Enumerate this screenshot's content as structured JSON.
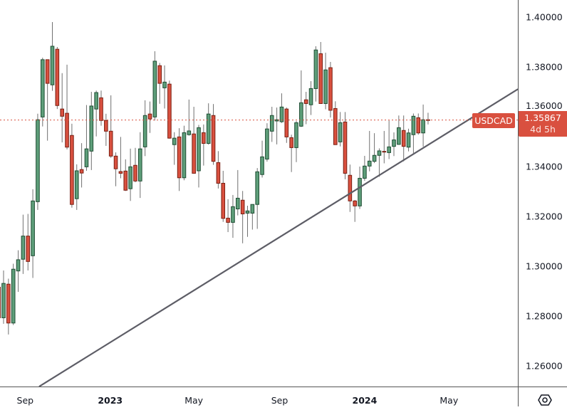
{
  "chart_data": {
    "type": "candlestick",
    "symbol": "USDCAD",
    "interval": "1W",
    "first_candle": "2022-07-25",
    "last_price": "1.35867",
    "time_to_close": "4d 5h",
    "ylim": [
      1.25143,
      1.40686
    ],
    "y_ticks": [
      "1.26000",
      "1.28000",
      "1.30000",
      "1.32000",
      "1.34000",
      "1.36000",
      "1.38000",
      "1.40000"
    ],
    "x_ticks": [
      {
        "label": "Sep",
        "date": "2022-09-01",
        "bold": false
      },
      {
        "label": "2023",
        "date": "2023-01-01",
        "bold": true
      },
      {
        "label": "May",
        "date": "2023-05-01",
        "bold": false
      },
      {
        "label": "Sep",
        "date": "2023-09-01",
        "bold": false
      },
      {
        "label": "2024",
        "date": "2024-01-01",
        "bold": true
      },
      {
        "label": "May",
        "date": "2024-05-01",
        "bold": false
      }
    ],
    "trendline": [
      {
        "date": "2022-09-21",
        "price": 1.2517
      },
      {
        "date": "2024-08-08",
        "price": 1.3711
      }
    ],
    "candle_fields": [
      "open",
      "high",
      "low",
      "close"
    ],
    "candles": [
      [
        1.2916,
        1.2945,
        1.276,
        1.2793
      ],
      [
        1.2793,
        1.2983,
        1.2769,
        1.2931
      ],
      [
        1.2928,
        1.295,
        1.2726,
        1.2772
      ],
      [
        1.2772,
        1.301,
        1.2764,
        1.2988
      ],
      [
        1.2981,
        1.3064,
        1.2897,
        1.3026
      ],
      [
        1.3028,
        1.3207,
        1.2969,
        1.3121
      ],
      [
        1.3121,
        1.321,
        1.2983,
        1.3019
      ],
      [
        1.3042,
        1.3309,
        1.2953,
        1.3262
      ],
      [
        1.3259,
        1.3612,
        1.3226,
        1.3588
      ],
      [
        1.3599,
        1.3837,
        1.3561,
        1.3829
      ],
      [
        1.3829,
        1.3829,
        1.3504,
        1.3734
      ],
      [
        1.3728,
        1.398,
        1.3704,
        1.3883
      ],
      [
        1.3871,
        1.388,
        1.3631,
        1.3645
      ],
      [
        1.3631,
        1.3775,
        1.3497,
        1.3602
      ],
      [
        1.3614,
        1.3809,
        1.3469,
        1.3478
      ],
      [
        1.3525,
        1.3572,
        1.3235,
        1.3248
      ],
      [
        1.3271,
        1.3409,
        1.3226,
        1.3383
      ],
      [
        1.3388,
        1.3494,
        1.3316,
        1.3374
      ],
      [
        1.3399,
        1.3647,
        1.3383,
        1.3471
      ],
      [
        1.3462,
        1.37,
        1.3386,
        1.3643
      ],
      [
        1.3631,
        1.3705,
        1.3521,
        1.3697
      ],
      [
        1.3676,
        1.3705,
        1.3564,
        1.3585
      ],
      [
        1.3585,
        1.3612,
        1.3483,
        1.3542
      ],
      [
        1.3542,
        1.3686,
        1.3435,
        1.3442
      ],
      [
        1.3442,
        1.3457,
        1.3321,
        1.3391
      ],
      [
        1.338,
        1.3519,
        1.3353,
        1.3373
      ],
      [
        1.3382,
        1.3429,
        1.3302,
        1.3305
      ],
      [
        1.3311,
        1.3472,
        1.3262,
        1.3399
      ],
      [
        1.3405,
        1.3475,
        1.3337,
        1.3342
      ],
      [
        1.3342,
        1.3538,
        1.3274,
        1.3471
      ],
      [
        1.3479,
        1.3666,
        1.3442,
        1.3605
      ],
      [
        1.3611,
        1.3661,
        1.3535,
        1.3591
      ],
      [
        1.3599,
        1.3863,
        1.3585,
        1.3823
      ],
      [
        1.3805,
        1.3816,
        1.3652,
        1.3734
      ],
      [
        1.3716,
        1.3806,
        1.3633,
        1.3739
      ],
      [
        1.3731,
        1.3745,
        1.3512,
        1.3514
      ],
      [
        1.3488,
        1.3538,
        1.3407,
        1.3514
      ],
      [
        1.3519,
        1.3554,
        1.3302,
        1.3355
      ],
      [
        1.3355,
        1.3564,
        1.3345,
        1.3536
      ],
      [
        1.3528,
        1.3669,
        1.3524,
        1.3543
      ],
      [
        1.3531,
        1.364,
        1.3373,
        1.3373
      ],
      [
        1.3383,
        1.3567,
        1.3316,
        1.3556
      ],
      [
        1.3536,
        1.3569,
        1.3404,
        1.3493
      ],
      [
        1.3493,
        1.3654,
        1.3488,
        1.3611
      ],
      [
        1.3605,
        1.3651,
        1.3407,
        1.3421
      ],
      [
        1.3416,
        1.3462,
        1.3312,
        1.3333
      ],
      [
        1.3333,
        1.3383,
        1.3178,
        1.3192
      ],
      [
        1.3193,
        1.3269,
        1.3137,
        1.3176
      ],
      [
        1.3176,
        1.3286,
        1.3114,
        1.3239
      ],
      [
        1.323,
        1.3386,
        1.3204,
        1.3273
      ],
      [
        1.3265,
        1.3302,
        1.3092,
        1.321
      ],
      [
        1.3213,
        1.3243,
        1.3118,
        1.3222
      ],
      [
        1.3213,
        1.3248,
        1.3147,
        1.3248
      ],
      [
        1.3248,
        1.3394,
        1.315,
        1.3379
      ],
      [
        1.3368,
        1.3504,
        1.3356,
        1.3439
      ],
      [
        1.343,
        1.3574,
        1.342,
        1.3551
      ],
      [
        1.3542,
        1.364,
        1.3499,
        1.3605
      ],
      [
        1.3583,
        1.3637,
        1.3489,
        1.3588
      ],
      [
        1.358,
        1.3694,
        1.3575,
        1.3639
      ],
      [
        1.3631,
        1.3637,
        1.3495,
        1.3519
      ],
      [
        1.3516,
        1.3528,
        1.3378,
        1.3476
      ],
      [
        1.3476,
        1.3583,
        1.3418,
        1.3576
      ],
      [
        1.3562,
        1.3786,
        1.3559,
        1.3656
      ],
      [
        1.3668,
        1.37,
        1.357,
        1.3653
      ],
      [
        1.3648,
        1.3743,
        1.3607,
        1.3713
      ],
      [
        1.3713,
        1.3883,
        1.3661,
        1.3868
      ],
      [
        1.3853,
        1.39,
        1.3653,
        1.3653
      ],
      [
        1.3653,
        1.3857,
        1.363,
        1.3788
      ],
      [
        1.3797,
        1.382,
        1.3597,
        1.3626
      ],
      [
        1.3633,
        1.3662,
        1.3488,
        1.3488
      ],
      [
        1.3499,
        1.3619,
        1.3481,
        1.3576
      ],
      [
        1.3579,
        1.3619,
        1.3349,
        1.3373
      ],
      [
        1.3365,
        1.3408,
        1.3218,
        1.3262
      ],
      [
        1.3262,
        1.3266,
        1.3178,
        1.3242
      ],
      [
        1.3242,
        1.34,
        1.323,
        1.3353
      ],
      [
        1.3353,
        1.3443,
        1.3343,
        1.3402
      ],
      [
        1.3402,
        1.3543,
        1.3381,
        1.3422
      ],
      [
        1.3421,
        1.3534,
        1.3414,
        1.3445
      ],
      [
        1.3445,
        1.3473,
        1.3359,
        1.3463
      ],
      [
        1.3461,
        1.3543,
        1.3413,
        1.3459
      ],
      [
        1.3456,
        1.3585,
        1.343,
        1.3479
      ],
      [
        1.3481,
        1.3537,
        1.3442,
        1.3507
      ],
      [
        1.3489,
        1.3605,
        1.3487,
        1.3556
      ],
      [
        1.3545,
        1.3605,
        1.3421,
        1.3481
      ],
      [
        1.3478,
        1.3552,
        1.3461,
        1.3535
      ],
      [
        1.3528,
        1.3613,
        1.3454,
        1.3602
      ],
      [
        1.3596,
        1.3613,
        1.3528,
        1.3535
      ],
      [
        1.3535,
        1.3649,
        1.348,
        1.3588
      ],
      [
        1.3588,
        1.3616,
        1.3569,
        1.35867
      ]
    ],
    "colors": {
      "up": "#5e9e7a",
      "up_border": "#1e4d33",
      "down": "#d9503f",
      "down_border": "#7a1f12",
      "wick": "#707070",
      "trendline": "#5d5d66",
      "last_price": "#d9503f"
    }
  }
}
